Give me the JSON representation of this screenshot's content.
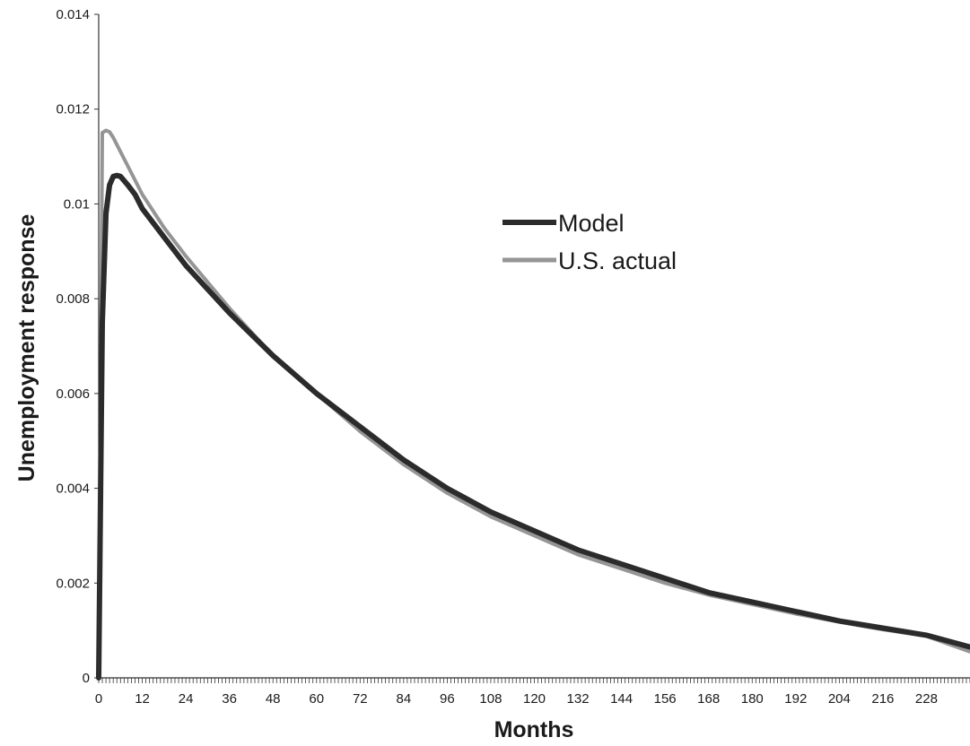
{
  "chart_data": {
    "type": "line",
    "title": "",
    "xlabel": "Months",
    "ylabel": "Unemployment response",
    "xlim": [
      0,
      240
    ],
    "ylim": [
      0,
      0.014
    ],
    "x_ticks": [
      0,
      12,
      24,
      36,
      48,
      60,
      72,
      84,
      96,
      108,
      120,
      132,
      144,
      156,
      168,
      180,
      192,
      204,
      216,
      228
    ],
    "y_ticks": [
      0,
      0.002,
      0.004,
      0.006,
      0.008,
      0.01,
      0.012,
      0.014
    ],
    "y_tick_labels": [
      "0",
      "0.002",
      "0.004",
      "0.006",
      "0.008",
      "0.01",
      "0.012",
      "0.014"
    ],
    "grid": false,
    "legend_position": "upper-right of center",
    "series": [
      {
        "name": "Model",
        "color": "#2b2b2b",
        "x": [
          0,
          1,
          2,
          3,
          4,
          5,
          6,
          8,
          10,
          12,
          18,
          24,
          36,
          48,
          60,
          72,
          84,
          96,
          108,
          120,
          132,
          144,
          156,
          168,
          180,
          192,
          204,
          216,
          228,
          240
        ],
        "y": [
          0,
          0.0075,
          0.0098,
          0.0104,
          0.01058,
          0.0106,
          0.01058,
          0.0104,
          0.0102,
          0.0099,
          0.0093,
          0.0087,
          0.0077,
          0.0068,
          0.006,
          0.0053,
          0.0046,
          0.004,
          0.0035,
          0.0031,
          0.0027,
          0.0024,
          0.0021,
          0.0018,
          0.0016,
          0.0014,
          0.0012,
          0.00105,
          0.0009,
          0.00065
        ]
      },
      {
        "name": "U.S. actual",
        "color": "#959595",
        "x": [
          0,
          1,
          2,
          3,
          4,
          6,
          8,
          10,
          12,
          18,
          24,
          36,
          48,
          60,
          72,
          84,
          96,
          108,
          120,
          132,
          144,
          156,
          168,
          180,
          192,
          204,
          216,
          228,
          240
        ],
        "y": [
          0,
          0.0115,
          0.01155,
          0.01152,
          0.0114,
          0.0111,
          0.0108,
          0.0105,
          0.0102,
          0.0095,
          0.0089,
          0.0078,
          0.0068,
          0.006,
          0.0052,
          0.0045,
          0.0039,
          0.0034,
          0.003,
          0.0026,
          0.0023,
          0.002,
          0.00175,
          0.00155,
          0.00135,
          0.00118,
          0.00102,
          0.00088,
          0.00055
        ]
      }
    ]
  }
}
